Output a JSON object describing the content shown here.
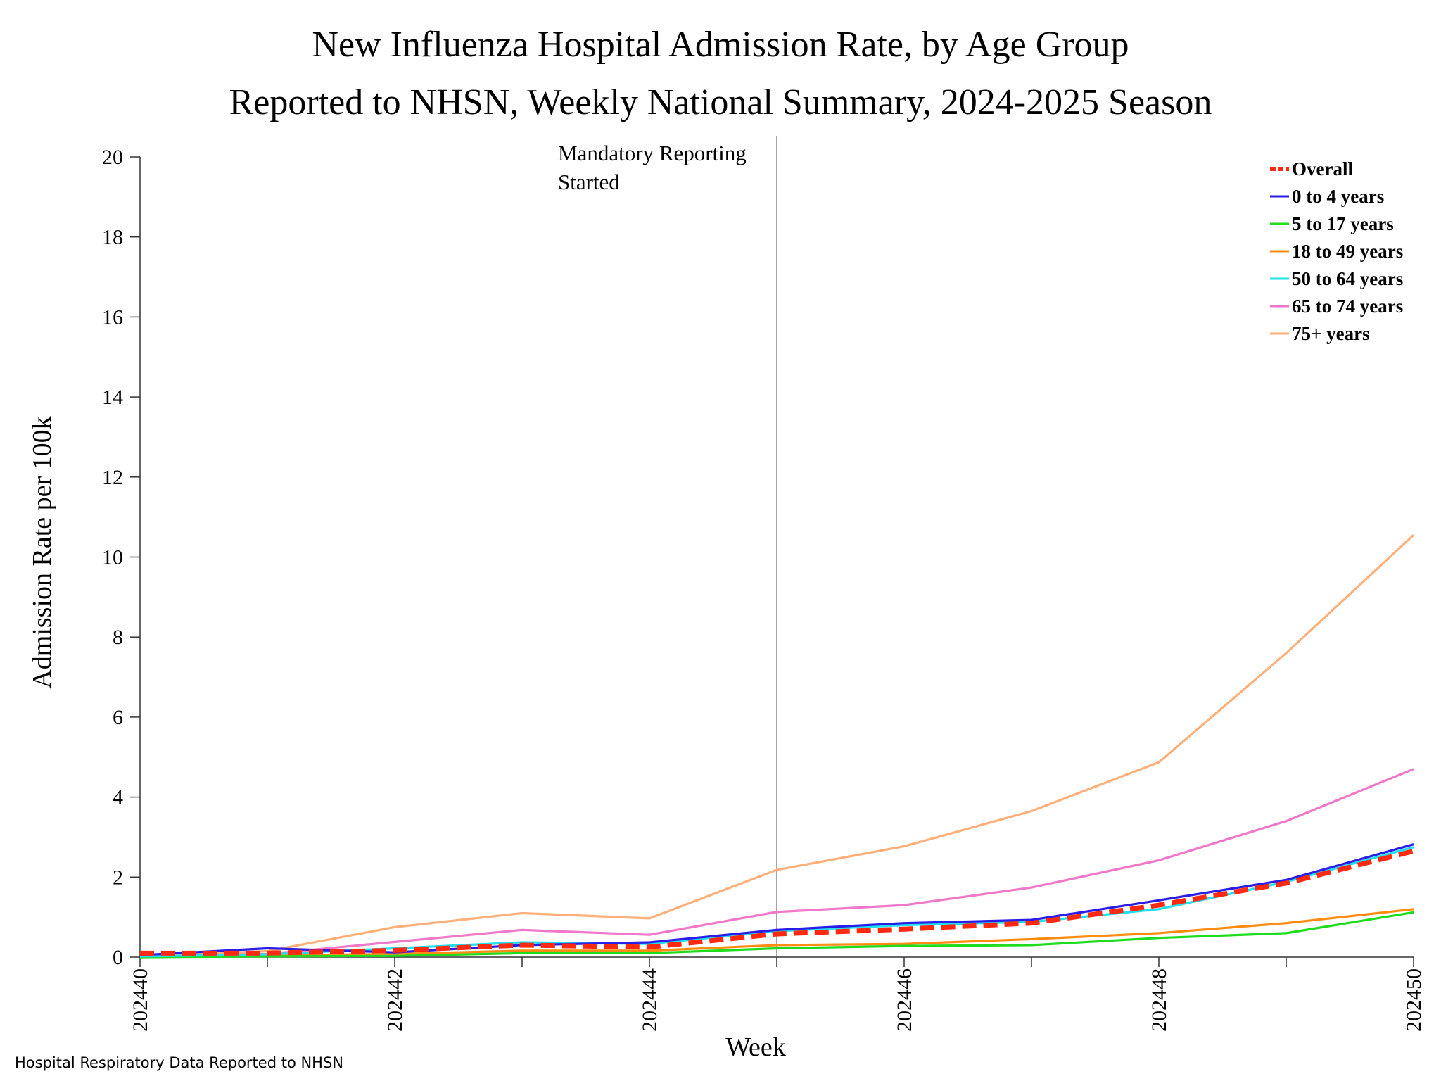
{
  "chart_data": {
    "type": "line",
    "title": "New Influenza Hospital Admission Rate, by Age Group",
    "subtitle": "Reported to NHSN, Weekly National Summary, 2024-2025 Season",
    "xlabel": "Week",
    "ylabel": "Admission Rate per 100k",
    "x": [
      "202440",
      "202441",
      "202442",
      "202443",
      "202444",
      "202445",
      "202446",
      "202447",
      "202448",
      "202449",
      "202450"
    ],
    "x_tick_labels": [
      "202440",
      "202442",
      "202444",
      "202446",
      "202448",
      "202450"
    ],
    "ylim": [
      0,
      20
    ],
    "y_ticks": [
      0,
      2,
      4,
      6,
      8,
      10,
      12,
      14,
      16,
      18,
      20
    ],
    "grid": false,
    "legend_placement": "top-right",
    "annotation": {
      "x": "202445",
      "text_lines": [
        "Mandatory Reporting",
        "Started"
      ]
    },
    "series": [
      {
        "name": "Overall",
        "color": "#ff2a10",
        "dashed": true,
        "values": [
          0.1,
          0.1,
          0.17,
          0.3,
          0.25,
          0.58,
          0.7,
          0.85,
          1.3,
          1.85,
          2.65
        ]
      },
      {
        "name": "0 to 4 years",
        "color": "#2a1ee6",
        "values": [
          0.05,
          0.22,
          0.12,
          0.3,
          0.37,
          0.68,
          0.85,
          0.93,
          1.42,
          1.93,
          2.82
        ]
      },
      {
        "name": "5 to 17 years",
        "color": "#1fdc1f",
        "values": [
          0.0,
          0.02,
          0.03,
          0.1,
          0.1,
          0.22,
          0.28,
          0.3,
          0.48,
          0.6,
          1.12
        ]
      },
      {
        "name": "18 to 49 years",
        "color": "#ff8c10",
        "values": [
          0.0,
          0.04,
          0.08,
          0.16,
          0.16,
          0.3,
          0.33,
          0.45,
          0.6,
          0.85,
          1.2
        ]
      },
      {
        "name": "50 to 64 years",
        "color": "#1ee0f0",
        "values": [
          0.02,
          0.07,
          0.22,
          0.37,
          0.33,
          0.65,
          0.8,
          0.88,
          1.2,
          1.88,
          2.75
        ]
      },
      {
        "name": "65 to 74 years",
        "color": "#f078c8",
        "values": [
          0.02,
          0.08,
          0.38,
          0.68,
          0.56,
          1.13,
          1.3,
          1.74,
          2.42,
          3.4,
          4.7
        ]
      },
      {
        "name": "75+ years",
        "color": "#ffb07a",
        "values": [
          0.0,
          0.15,
          0.75,
          1.1,
          0.97,
          2.18,
          2.77,
          3.65,
          4.87,
          7.6,
          10.55
        ]
      }
    ]
  },
  "footer": "Hospital Respiratory Data Reported to NHSN"
}
